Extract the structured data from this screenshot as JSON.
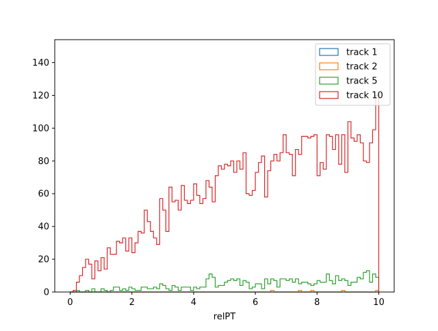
{
  "chart_data": {
    "type": "histogram",
    "xlabel": "relPT",
    "ylabel": "",
    "xlim": [
      -0.5,
      10.5
    ],
    "ylim": [
      0,
      154
    ],
    "xticks": [
      "0",
      "2",
      "4",
      "6",
      "8",
      "10"
    ],
    "yticks": [
      "0",
      "20",
      "40",
      "60",
      "80",
      "100",
      "120",
      "140"
    ],
    "xtick_values": [
      0,
      2,
      4,
      6,
      8,
      10
    ],
    "ytick_values": [
      0,
      20,
      40,
      60,
      80,
      100,
      120,
      140
    ],
    "bins": {
      "start": 0,
      "end": 10,
      "count": 100
    },
    "legend_position": "upper right",
    "series": [
      {
        "name": "track 1",
        "color": "#1f77b4",
        "values": [
          0,
          0,
          0,
          0,
          0,
          0,
          0,
          0,
          0,
          0,
          0,
          0,
          0,
          0,
          0,
          0,
          0,
          0,
          0,
          0,
          0,
          0,
          0,
          0,
          0,
          0,
          0,
          0,
          0,
          0,
          0,
          0,
          0,
          0,
          0,
          0,
          0,
          0,
          0,
          0,
          0,
          0,
          0,
          0,
          0,
          0,
          0,
          0,
          0,
          0,
          0,
          0,
          0,
          0,
          0,
          0,
          0,
          0,
          0,
          0,
          0,
          0,
          0,
          0,
          0,
          0,
          0,
          0,
          0,
          0,
          0,
          0,
          0,
          0,
          0,
          0,
          0,
          0,
          0,
          0,
          0,
          0,
          0,
          0,
          0,
          0,
          0,
          0,
          0,
          0,
          0,
          0,
          0,
          0,
          0,
          0,
          0,
          0,
          0,
          0
        ]
      },
      {
        "name": "track 2",
        "color": "#ff7f0e",
        "values": [
          0,
          0,
          0,
          0,
          0,
          0,
          0,
          0,
          0,
          0,
          0,
          0,
          0,
          0,
          0,
          0,
          0,
          0,
          0,
          0,
          0,
          0,
          0,
          0,
          0,
          0,
          0,
          0,
          0,
          0,
          0,
          0,
          0,
          0,
          0,
          0,
          0,
          0,
          0,
          0,
          0,
          0,
          0,
          0,
          0,
          0,
          0,
          0,
          0,
          0,
          0,
          0,
          0,
          0,
          0,
          0,
          0,
          0,
          0,
          0,
          0,
          0,
          0,
          0,
          0,
          1,
          0,
          0,
          0,
          0,
          0,
          0,
          0,
          0,
          1,
          0,
          0,
          0,
          1,
          0,
          0,
          0,
          0,
          0,
          0,
          0,
          0,
          0,
          1,
          0,
          0,
          0,
          0,
          0,
          0,
          0,
          0,
          0,
          0,
          1
        ]
      },
      {
        "name": "track 5",
        "color": "#2ca02c",
        "values": [
          0,
          0,
          1,
          0,
          0,
          1,
          0,
          2,
          0,
          0,
          2,
          1,
          0,
          1,
          3,
          3,
          1,
          2,
          1,
          3,
          2,
          1,
          1,
          3,
          3,
          2,
          2,
          3,
          2,
          5,
          4,
          2,
          1,
          4,
          3,
          1,
          3,
          3,
          3,
          1,
          3,
          2,
          3,
          3,
          8,
          11,
          9,
          3,
          4,
          4,
          6,
          7,
          8,
          7,
          8,
          4,
          7,
          6,
          2,
          3,
          5,
          5,
          2,
          8,
          5,
          8,
          7,
          3,
          8,
          8,
          7,
          8,
          6,
          8,
          5,
          6,
          6,
          5,
          4,
          5,
          7,
          6,
          6,
          11,
          7,
          5,
          10,
          7,
          8,
          7,
          4,
          6,
          6,
          9,
          8,
          12,
          13,
          6,
          11,
          9
        ]
      },
      {
        "name": "track 10",
        "color": "#d62728",
        "values": [
          0,
          1,
          6,
          10,
          15,
          20,
          17,
          8,
          19,
          13,
          21,
          14,
          27,
          23,
          23,
          31,
          30,
          33,
          25,
          33,
          24,
          30,
          37,
          36,
          50,
          43,
          37,
          33,
          29,
          57,
          50,
          37,
          64,
          55,
          56,
          50,
          65,
          56,
          54,
          56,
          66,
          59,
          54,
          57,
          68,
          64,
          55,
          71,
          77,
          75,
          78,
          77,
          80,
          73,
          80,
          75,
          85,
          60,
          59,
          62,
          73,
          79,
          83,
          58,
          74,
          80,
          84,
          80,
          85,
          96,
          85,
          84,
          71,
          87,
          84,
          95,
          95,
          94,
          95,
          96,
          71,
          79,
          75,
          96,
          95,
          87,
          96,
          78,
          96,
          73,
          104,
          94,
          92,
          96,
          91,
          80,
          79,
          91,
          99,
          120
        ]
      }
    ]
  }
}
